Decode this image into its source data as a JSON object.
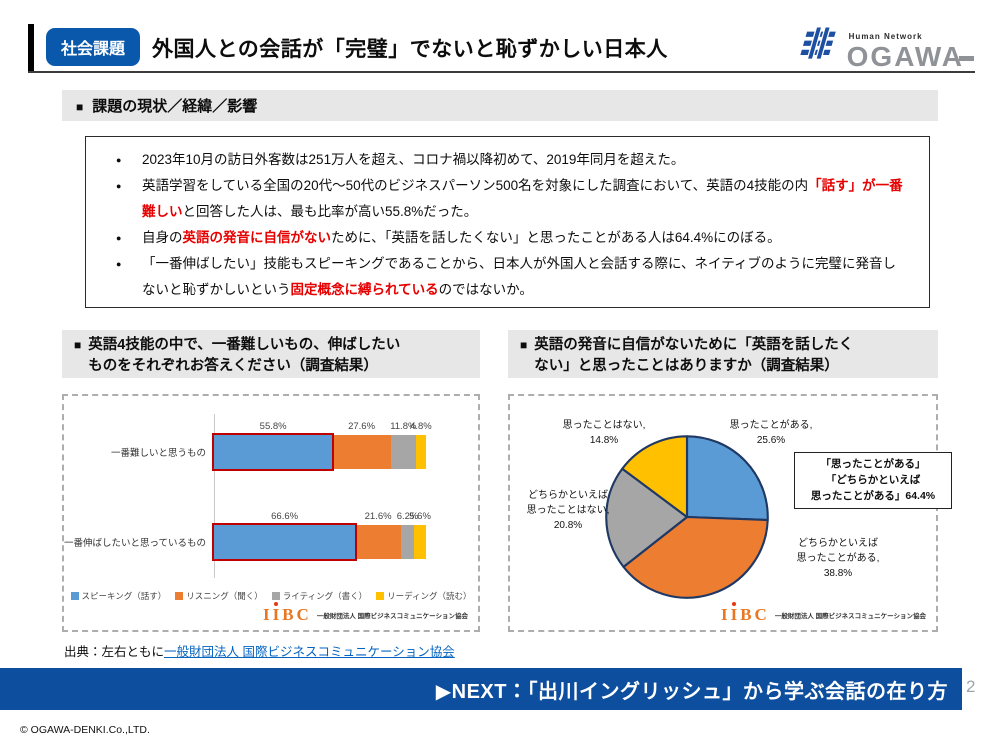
{
  "markers": {
    "square": "■",
    "dot": "●"
  },
  "header": {
    "badge": "社会課題",
    "title": "外国人との会話が「完璧」でないと恥ずかしい日本人",
    "logo": {
      "tagline": "Human Network",
      "name": "OGAWA"
    }
  },
  "overview": {
    "heading": "課題の現状／経緯／影響",
    "bullets": [
      {
        "segments": [
          {
            "text": "2023年10月の訪日外客数は251万人を超え、コロナ禍以降初めて、2019年同月を超えた。",
            "red": false
          }
        ]
      },
      {
        "segments": [
          {
            "text": "英語学習をしている全国の20代～50代のビジネスパーソン500名を対象にした調査において、英語の4技能の内",
            "red": false
          },
          {
            "text": "「話す」が一番難しい",
            "red": true
          },
          {
            "text": "と回答した人は、最も比率が高い55.8%だった。",
            "red": false
          }
        ]
      },
      {
        "segments": [
          {
            "text": "自身の",
            "red": false
          },
          {
            "text": "英語の発音に自信がない",
            "red": true
          },
          {
            "text": "ために、「英語を話したくない」と思ったことがある人は64.4%にのぼる。",
            "red": false
          }
        ]
      },
      {
        "segments": [
          {
            "text": "「一番伸ばしたい」技能もスピーキングであることから、日本人が外国人と会話する際に、ネイティブのように完璧に発音しないと恥ずかしいという",
            "red": false
          },
          {
            "text": "固定概念に縛られている",
            "red": true
          },
          {
            "text": "のではないか。",
            "red": false
          }
        ]
      }
    ]
  },
  "left_panel": {
    "heading_lines": [
      "英語4技能の中で、一番難しいもの、伸ばしたい",
      "ものをそれぞれお答えください（調査結果）"
    ]
  },
  "right_panel": {
    "heading_lines": [
      "英語の発音に自信がないために「英語を話したく",
      "ない」と思ったことはありますか（調査結果）"
    ]
  },
  "chart_data": [
    {
      "type": "bar",
      "orientation": "horizontal-stacked",
      "title": "英語4技能の中で、一番難しいもの、伸ばしたいものをそれぞれお答えください（調査結果）",
      "categories": [
        "一番難しいと思うもの",
        "一番伸ばしたいと思っているもの"
      ],
      "series": [
        {
          "name": "スピーキング（話す）",
          "color": "#5b9bd5",
          "values": [
            55.8,
            66.6
          ],
          "highlighted": true,
          "highlight_color": "#c00000"
        },
        {
          "name": "リスニング（聞く）",
          "color": "#ed7d31",
          "values": [
            27.6,
            21.6
          ]
        },
        {
          "name": "ライティング（書く）",
          "color": "#a6a6a6",
          "values": [
            11.8,
            6.2
          ]
        },
        {
          "name": "リーディング（読む）",
          "color": "#ffc000",
          "values": [
            4.8,
            5.6
          ]
        }
      ],
      "xlim": [
        0,
        100
      ],
      "value_suffix": "%",
      "legend_position": "bottom",
      "source_logo": "IIBC",
      "source_text": "一般財団法人 国際ビジネスコミュニケーション協会"
    },
    {
      "type": "pie",
      "title": "英語の発音に自信がないために「英語を話したくない」と思ったことはありますか（調査結果）",
      "start_angle_deg": 0,
      "direction": "clockwise",
      "outline_color": "#1f3864",
      "slices": [
        {
          "label": "思ったことがある",
          "value": 25.6,
          "color": "#5b9bd5",
          "label_lines": [
            "思ったことがある,",
            "25.6%"
          ]
        },
        {
          "label": "どちらかといえば思ったことがある",
          "value": 38.8,
          "color": "#ed7d31",
          "label_lines": [
            "どちらかといえば",
            "思ったことがある,",
            "38.8%"
          ]
        },
        {
          "label": "どちらかといえば思ったことはない",
          "value": 20.8,
          "color": "#a6a6a6",
          "label_lines": [
            "どちらかといえば",
            "思ったことはない,",
            "20.8%"
          ]
        },
        {
          "label": "思ったことはない",
          "value": 14.8,
          "color": "#ffc000",
          "label_lines": [
            "思ったことはない,",
            "14.8%"
          ]
        }
      ],
      "annotation_lines": [
        "「思ったことがある」",
        "「どちらかといえば",
        "思ったことがある」64.4%"
      ],
      "source_logo": "IIBC",
      "source_text": "一般財団法人 国際ビジネスコミュニケーション協会"
    }
  ],
  "source_line": {
    "prefix": "出典：左右ともに",
    "link": "一般財団法人 国際ビジネスコミュニケーション協会"
  },
  "footer": {
    "next_label": "▶NEXT：「出川イングリッシュ」から学ぶ会話の在り方",
    "page_number": "2",
    "copyright": "© OGAWA-DENKI.Co.,LTD."
  }
}
